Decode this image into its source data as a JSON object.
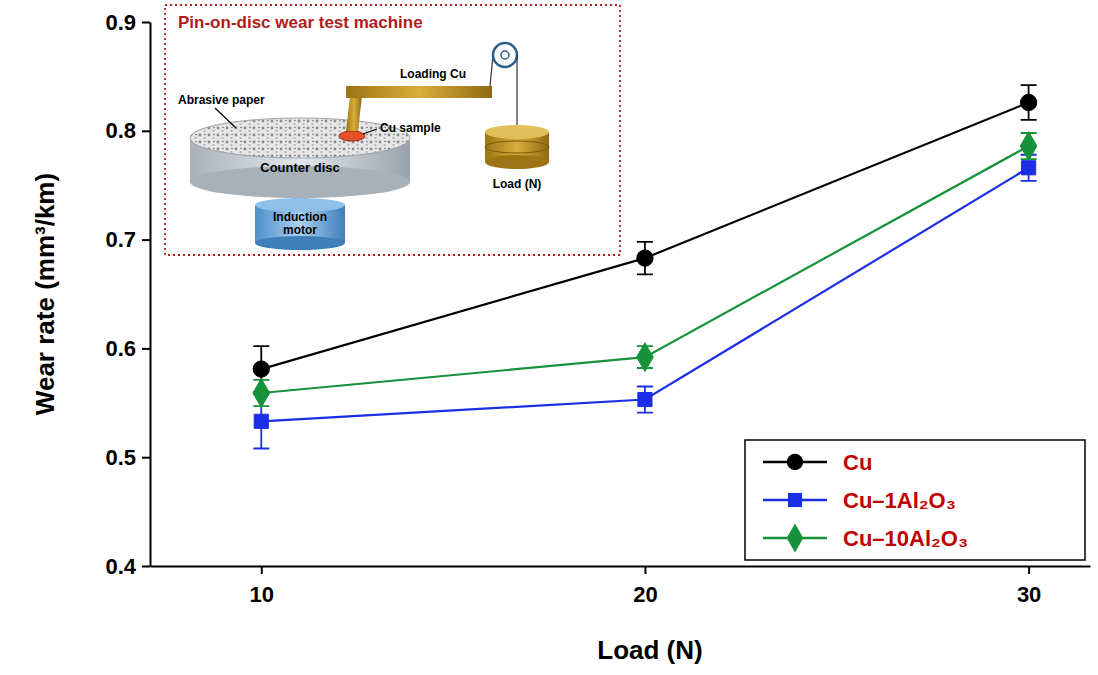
{
  "chart_data": {
    "type": "line",
    "x_label": "Load (N)",
    "y_label": "Wear rate (mm³/km)",
    "annotations": [
      "Pin-on-disc wear test machine",
      "Loading Cu",
      "Abrasive paper",
      "Cu sample",
      "Counter disc",
      "Induction motor",
      "Load (N)"
    ],
    "x": [
      10,
      20,
      30
    ],
    "xlim": [
      7.1,
      31.6
    ],
    "xticks": [
      10,
      20,
      30
    ],
    "ylim": [
      0.4,
      0.9
    ],
    "yticks": [
      0.4,
      0.5,
      0.6,
      0.7,
      0.8,
      0.9
    ],
    "legend": "lower right",
    "series": [
      {
        "name": "Cu",
        "color": "#000000",
        "marker": "circle",
        "values": [
          0.581,
          0.683,
          0.826
        ],
        "errors": [
          0.021,
          0.015,
          0.016
        ]
      },
      {
        "name": "Cu–1Al₂O₃",
        "color": "#1a2ee6",
        "marker": "square",
        "values": [
          0.533,
          0.553,
          0.766
        ],
        "errors": [
          0.025,
          0.012,
          0.012
        ]
      },
      {
        "name": "Cu–10Al₂O₃",
        "color": "#15923a",
        "marker": "diamond",
        "values": [
          0.559,
          0.592,
          0.786
        ],
        "errors": [
          0.012,
          0.01,
          0.012
        ]
      }
    ]
  }
}
